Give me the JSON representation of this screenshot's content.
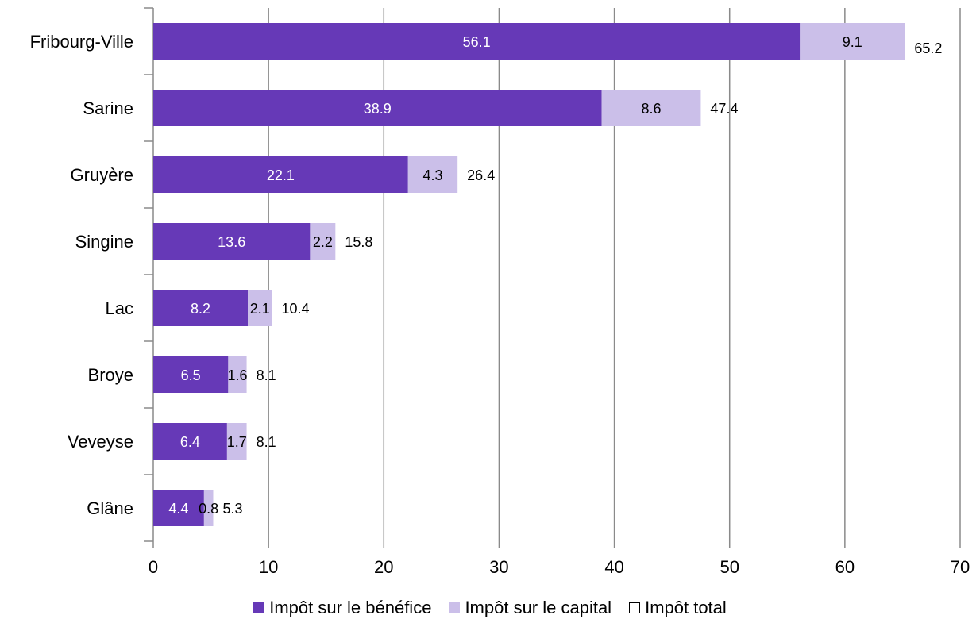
{
  "chart_data": {
    "type": "bar",
    "orientation": "horizontal",
    "stacked": true,
    "categories": [
      "Fribourg-Ville",
      "Sarine",
      "Gruyère",
      "Singine",
      "Lac",
      "Broye",
      "Veveyse",
      "Glâne"
    ],
    "series": [
      {
        "name": "Impôt sur le bénéfice",
        "color": "#6639b7",
        "values": [
          56.1,
          38.9,
          22.1,
          13.6,
          8.2,
          6.5,
          6.4,
          4.4
        ]
      },
      {
        "name": "Impôt sur le capital",
        "color": "#cbbfe9",
        "values": [
          9.1,
          8.6,
          4.3,
          2.2,
          2.1,
          1.6,
          1.7,
          0.8
        ]
      }
    ],
    "totals": {
      "name": "Impôt total",
      "values": [
        65.2,
        47.4,
        26.4,
        15.8,
        10.4,
        8.1,
        8.1,
        5.3
      ]
    },
    "xlim": [
      0,
      70
    ],
    "xticks": [
      0,
      10,
      20,
      30,
      40,
      50,
      60,
      70
    ],
    "grid": "vertical",
    "legend_position": "bottom"
  }
}
